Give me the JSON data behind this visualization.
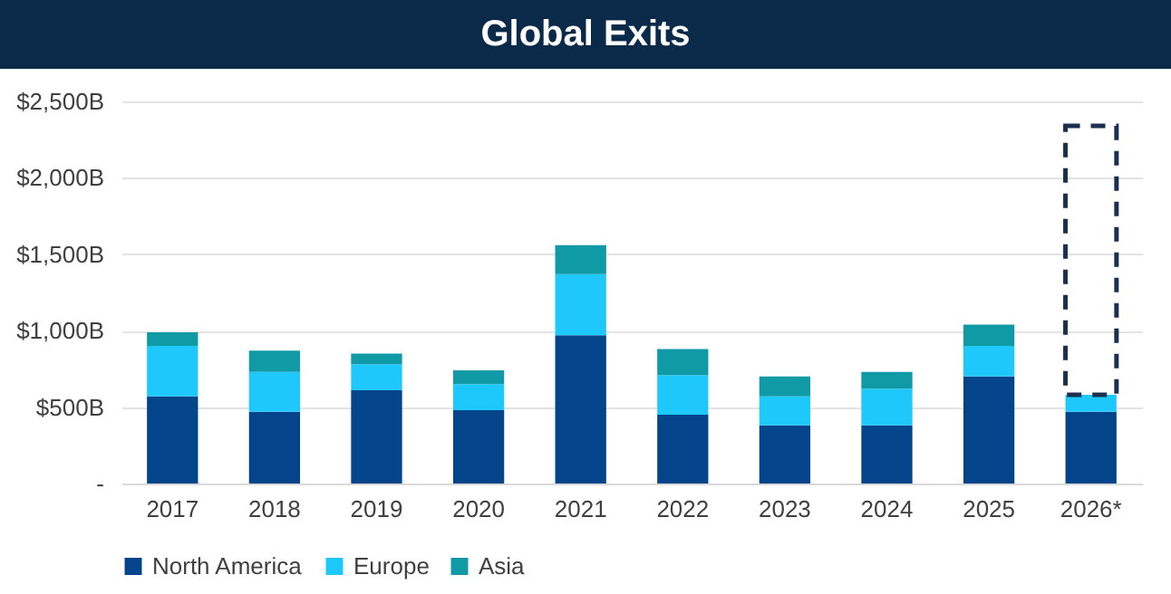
{
  "chart_data": {
    "type": "bar",
    "title": "Global Exits",
    "stacked": true,
    "categories": [
      "2017",
      "2018",
      "2019",
      "2020",
      "2021",
      "2022",
      "2023",
      "2024",
      "2025",
      "2026*"
    ],
    "series": [
      {
        "name": "North America",
        "color": "#03448a",
        "values": [
          570,
          470,
          610,
          480,
          970,
          450,
          380,
          380,
          700,
          470
        ]
      },
      {
        "name": "Europe",
        "color": "#1ec8fb",
        "values": [
          330,
          260,
          170,
          170,
          400,
          260,
          190,
          240,
          200,
          110
        ]
      },
      {
        "name": "Asia",
        "color": "#0f9aa6",
        "values": [
          90,
          140,
          70,
          90,
          190,
          170,
          130,
          110,
          140,
          null
        ]
      },
      {
        "color": "#1b2f4f",
        "line_style": "dashed",
        "values": [
          null,
          null,
          null,
          null,
          null,
          null,
          null,
          null,
          null,
          1760
        ]
      }
    ],
    "ylim": [
      0,
      2500
    ],
    "yticks": [
      {
        "value": 0,
        "label": "-"
      },
      {
        "value": 500,
        "label": "$500B"
      },
      {
        "value": 1000,
        "label": "$1,000B"
      },
      {
        "value": 1500,
        "label": "$1,500B"
      },
      {
        "value": 2000,
        "label": "$2,000B"
      },
      {
        "value": 2500,
        "label": "$2,500B"
      }
    ],
    "grid": "y",
    "legend": "bottom"
  }
}
